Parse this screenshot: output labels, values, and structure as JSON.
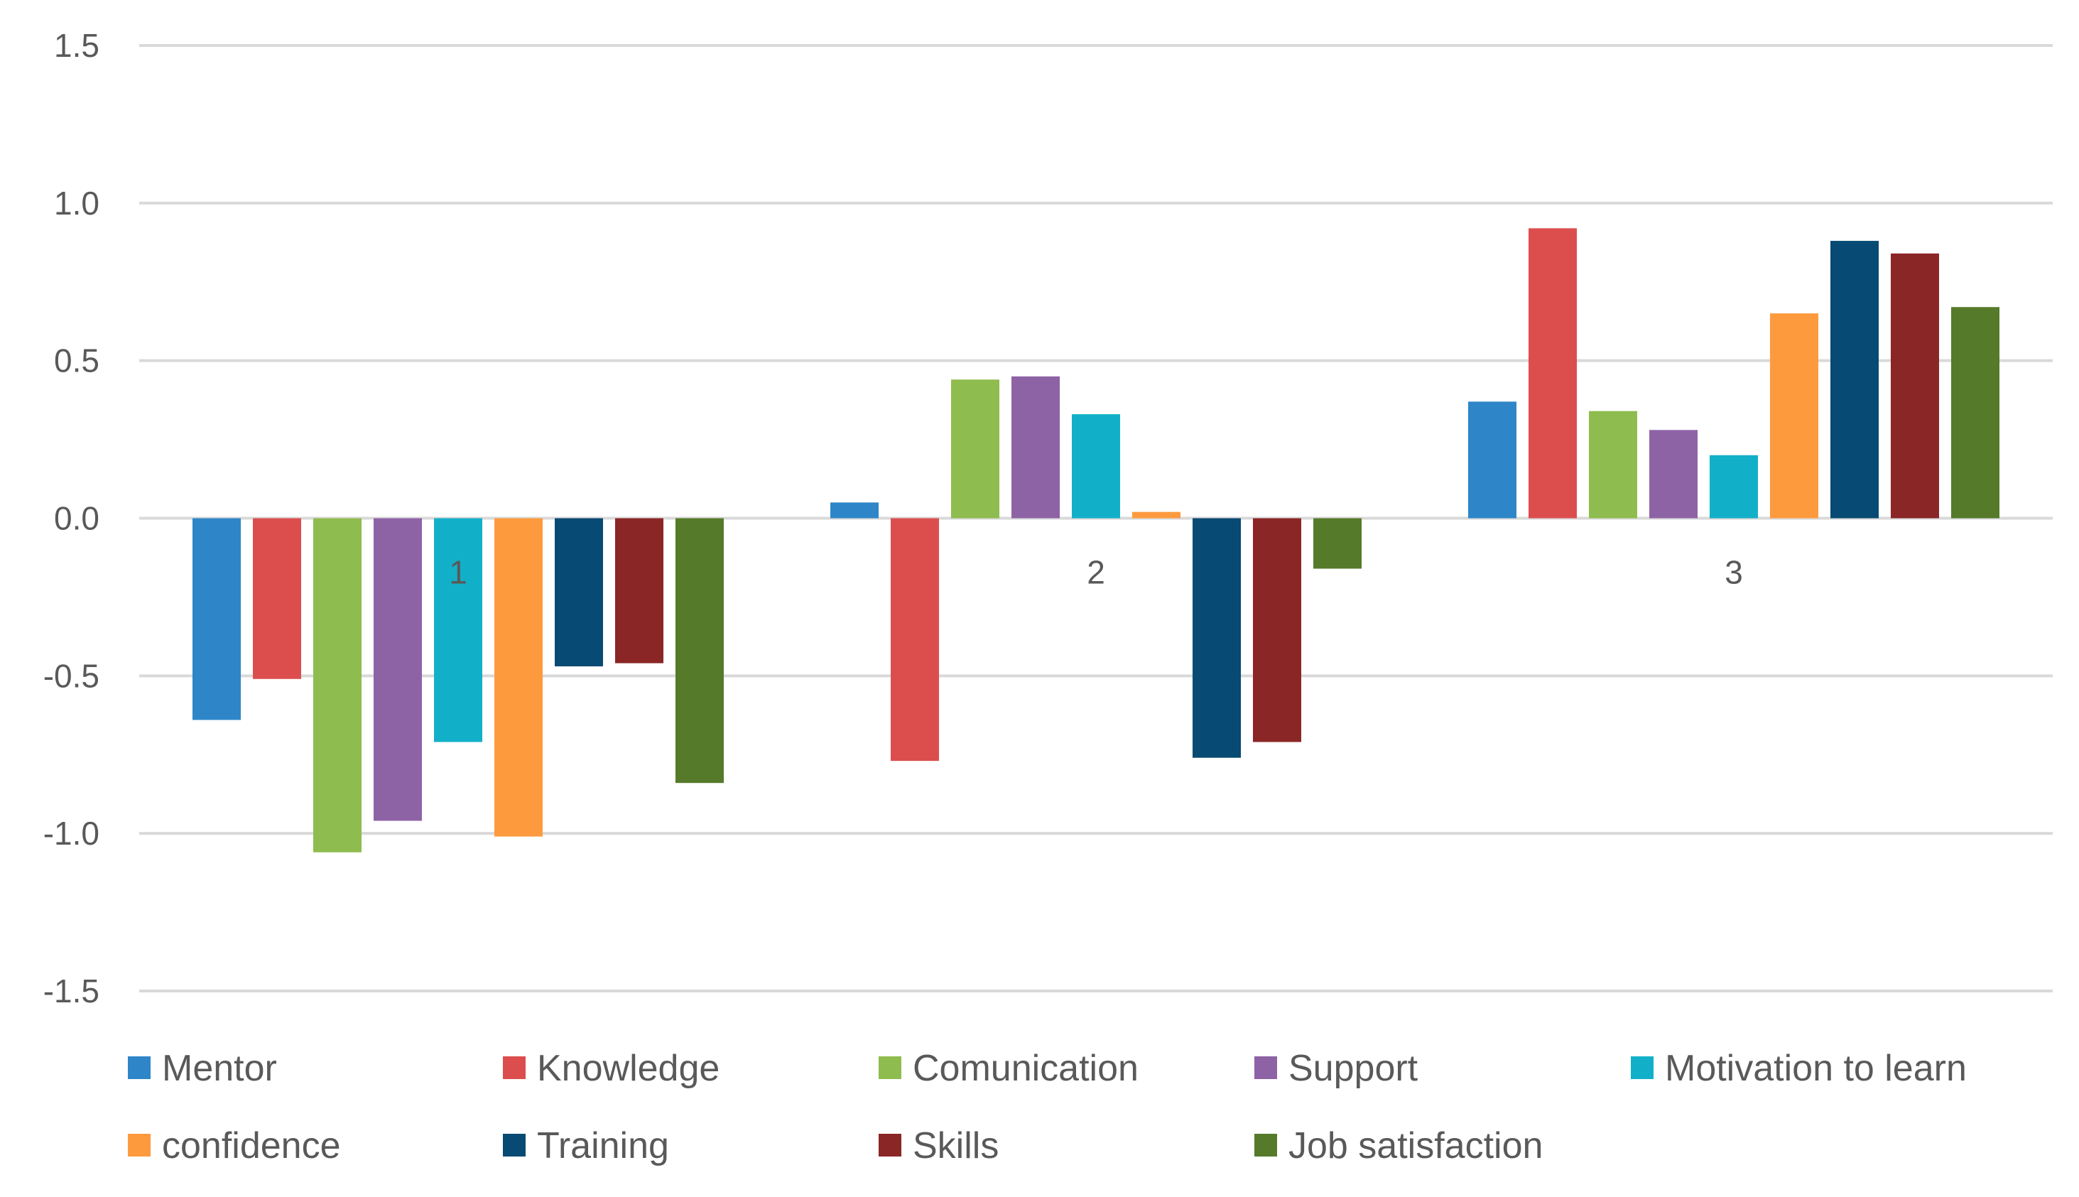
{
  "chart_data": {
    "type": "bar",
    "title": "",
    "xlabel": "",
    "ylabel": "",
    "categories": [
      "1",
      "2",
      "3"
    ],
    "ylim": [
      -1.5,
      1.5
    ],
    "yticks": [
      "1.5",
      "1.0",
      "0.5",
      "0.0",
      "-0.5",
      "-1.0",
      "-1.5"
    ],
    "ytick_values": [
      1.5,
      1.0,
      0.5,
      0.0,
      -0.5,
      -1.0,
      -1.5
    ],
    "grid": true,
    "legend_position": "bottom",
    "series": [
      {
        "name": "Mentor",
        "color": "#2e86c8",
        "values": [
          -0.64,
          0.05,
          0.37
        ]
      },
      {
        "name": "Knowledge",
        "color": "#dc4e4e",
        "values": [
          -0.51,
          -0.77,
          0.92
        ]
      },
      {
        "name": "Comunication",
        "color": "#8fbc4e",
        "values": [
          -1.06,
          0.44,
          0.34
        ]
      },
      {
        "name": "Support",
        "color": "#8e63a6",
        "values": [
          -0.96,
          0.45,
          0.28
        ]
      },
      {
        "name": "Motivation to learn",
        "color": "#12b0c8",
        "values": [
          -0.71,
          0.33,
          0.2
        ]
      },
      {
        "name": "confidence",
        "color": "#fe9a3e",
        "values": [
          -1.01,
          0.02,
          0.65
        ]
      },
      {
        "name": "Training",
        "color": "#074a73",
        "values": [
          -0.47,
          -0.76,
          0.88
        ]
      },
      {
        "name": "Skills",
        "color": "#8b2626",
        "values": [
          -0.46,
          -0.71,
          0.84
        ]
      },
      {
        "name": "Job satisfaction",
        "color": "#557a2a",
        "values": [
          -0.84,
          -0.16,
          0.67
        ]
      }
    ]
  }
}
